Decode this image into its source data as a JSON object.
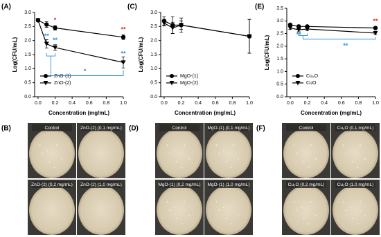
{
  "chart_data": [
    {
      "type": "line",
      "panel_label": "(A)",
      "x_label": "Concentration (mg/mL)",
      "y_label": "Log(CFU/mL)",
      "x": [
        0,
        0.1,
        0.2,
        1.0
      ],
      "series": [
        {
          "name": "ZnO-(1)",
          "color": "#000000",
          "marker": "circle",
          "values": [
            2.72,
            2.57,
            2.45,
            2.12
          ],
          "errors": [
            0.05,
            0.1,
            0.08,
            0.08
          ]
        },
        {
          "name": "ZnO-(2)",
          "color": "#000000",
          "marker": "triangle",
          "values": [
            2.72,
            1.88,
            1.75,
            1.22
          ],
          "errors": [
            0.05,
            0.15,
            0.1,
            0.2
          ]
        }
      ],
      "annotations": [
        {
          "text": "*",
          "color": "#e8262b"
        },
        {
          "text": "**",
          "color": "#e8262b"
        },
        {
          "text": "**",
          "color": "#2b8fd6"
        },
        {
          "text": "**",
          "color": "#2b8fd6"
        },
        {
          "text": "**",
          "color": "#2b8fd6"
        },
        {
          "text": "*",
          "color": "#2b8fd6"
        }
      ],
      "xlim": [
        -0.04,
        1.0
      ],
      "xticks": [
        {
          "value": 0,
          "label": "0.0"
        },
        {
          "value": 0.2,
          "label": "0.2"
        },
        {
          "value": 0.4,
          "label": "0.4"
        },
        {
          "value": 0.6,
          "label": "0.6"
        },
        {
          "value": 0.8,
          "label": "0.8"
        },
        {
          "value": 1.0,
          "label": "1.0"
        }
      ],
      "ylim": [
        0,
        3
      ],
      "yticks": [
        {
          "value": 0,
          "label": "0.0"
        },
        {
          "value": 0.5,
          "label": "0.5"
        },
        {
          "value": 1,
          "label": "1.0"
        },
        {
          "value": 1.5,
          "label": "1.5"
        },
        {
          "value": 2,
          "label": "2.0"
        },
        {
          "value": 2.5,
          "label": "2.5"
        },
        {
          "value": 3,
          "label": "3.0"
        }
      ],
      "legend": "lower-left"
    },
    {
      "type": "line",
      "panel_label": "(C)",
      "x_label": "Concentration (mg/mL)",
      "y_label": "Log(CFU/mL)",
      "x": [
        0,
        0.1,
        0.2,
        1.0
      ],
      "series": [
        {
          "name": "MgO-(1)",
          "color": "#000000",
          "marker": "circle",
          "values": [
            2.7,
            2.55,
            2.55,
            2.15
          ],
          "errors": [
            0.15,
            0.3,
            0.25,
            0.6
          ]
        },
        {
          "name": "MgO-(2)",
          "color": "#000000",
          "marker": "triangle",
          "values": [
            2.62,
            2.45,
            2.55,
            2.15
          ],
          "errors": [
            0.1,
            0.2,
            0.15,
            0.6
          ]
        }
      ],
      "annotations": [],
      "xlim": [
        -0.04,
        1.0
      ],
      "xticks": [
        {
          "value": 0,
          "label": "0.0"
        },
        {
          "value": 0.2,
          "label": "0.2"
        },
        {
          "value": 0.4,
          "label": "0.4"
        },
        {
          "value": 0.6,
          "label": "0.6"
        },
        {
          "value": 0.8,
          "label": "0.8"
        },
        {
          "value": 1.0,
          "label": "1.0"
        }
      ],
      "ylim": [
        0,
        3
      ],
      "yticks": [
        {
          "value": 0,
          "label": "0.0"
        },
        {
          "value": 0.5,
          "label": "0.5"
        },
        {
          "value": 1,
          "label": "1.0"
        },
        {
          "value": 1.5,
          "label": "1.5"
        },
        {
          "value": 2,
          "label": "2.0"
        },
        {
          "value": 2.5,
          "label": "2.5"
        },
        {
          "value": 3,
          "label": "3.0"
        }
      ],
      "legend": "lower-left"
    },
    {
      "type": "line",
      "panel_label": "(E)",
      "x_label": "Concentration (mg/mL)",
      "y_label": "Log(CFU/mL)",
      "x": [
        0,
        0.1,
        0.2,
        1.0
      ],
      "series": [
        {
          "name": "Cu₂O",
          "color": "#000000",
          "marker": "circle",
          "values": [
            2.85,
            2.78,
            2.78,
            2.72
          ],
          "errors": [
            0.05,
            0.06,
            0.05,
            0.05
          ]
        },
        {
          "name": "CuO",
          "color": "#000000",
          "marker": "triangle",
          "values": [
            2.72,
            2.65,
            2.68,
            2.52
          ],
          "errors": [
            0.05,
            0.08,
            0.06,
            0.06
          ]
        }
      ],
      "annotations": [
        {
          "text": "**",
          "color": "#e8262b"
        },
        {
          "text": "**",
          "color": "#2b8fd6"
        },
        {
          "text": "**",
          "color": "#2b8fd6"
        }
      ],
      "xlim": [
        -0.04,
        1.0
      ],
      "xticks": [
        {
          "value": 0,
          "label": "0.0"
        },
        {
          "value": 0.2,
          "label": "0.2"
        },
        {
          "value": 0.4,
          "label": "0.4"
        },
        {
          "value": 0.6,
          "label": "0.6"
        },
        {
          "value": 0.8,
          "label": "0.8"
        },
        {
          "value": 1.0,
          "label": "1.0"
        }
      ],
      "ylim": [
        0,
        3.5
      ],
      "yticks": [
        {
          "value": 0,
          "label": "0.0"
        },
        {
          "value": 0.5,
          "label": "0.5"
        },
        {
          "value": 1,
          "label": "1.0"
        },
        {
          "value": 1.5,
          "label": "1.5"
        },
        {
          "value": 2,
          "label": "2.0"
        },
        {
          "value": 2.5,
          "label": "2.5"
        },
        {
          "value": 3,
          "label": "3.0"
        },
        {
          "value": 3.5,
          "label": "3.5"
        }
      ],
      "legend": "lower-left"
    }
  ],
  "photo_panels": [
    {
      "label": "(B)",
      "captions": [
        "Control",
        "ZnO-(2) (0.1 mg/mL)",
        "ZnO-(2) (0.2 mg/mL)",
        "ZnO-(2) (1.0 mg/mL)"
      ]
    },
    {
      "label": "(D)",
      "captions": [
        "Control",
        "MgO-(1) (0.1 mg/mL)",
        "MgO-(1) (0.2 mg/mL)",
        "MgO-(1) (1.0 mg/mL)"
      ]
    },
    {
      "label": "(F)",
      "captions": [
        "Control",
        "Cu₂O (0.1 mg/mL)",
        "Cu₂O (0.2 mg/mL)",
        "Cu₂O (1.0 mg/mL)"
      ]
    }
  ]
}
